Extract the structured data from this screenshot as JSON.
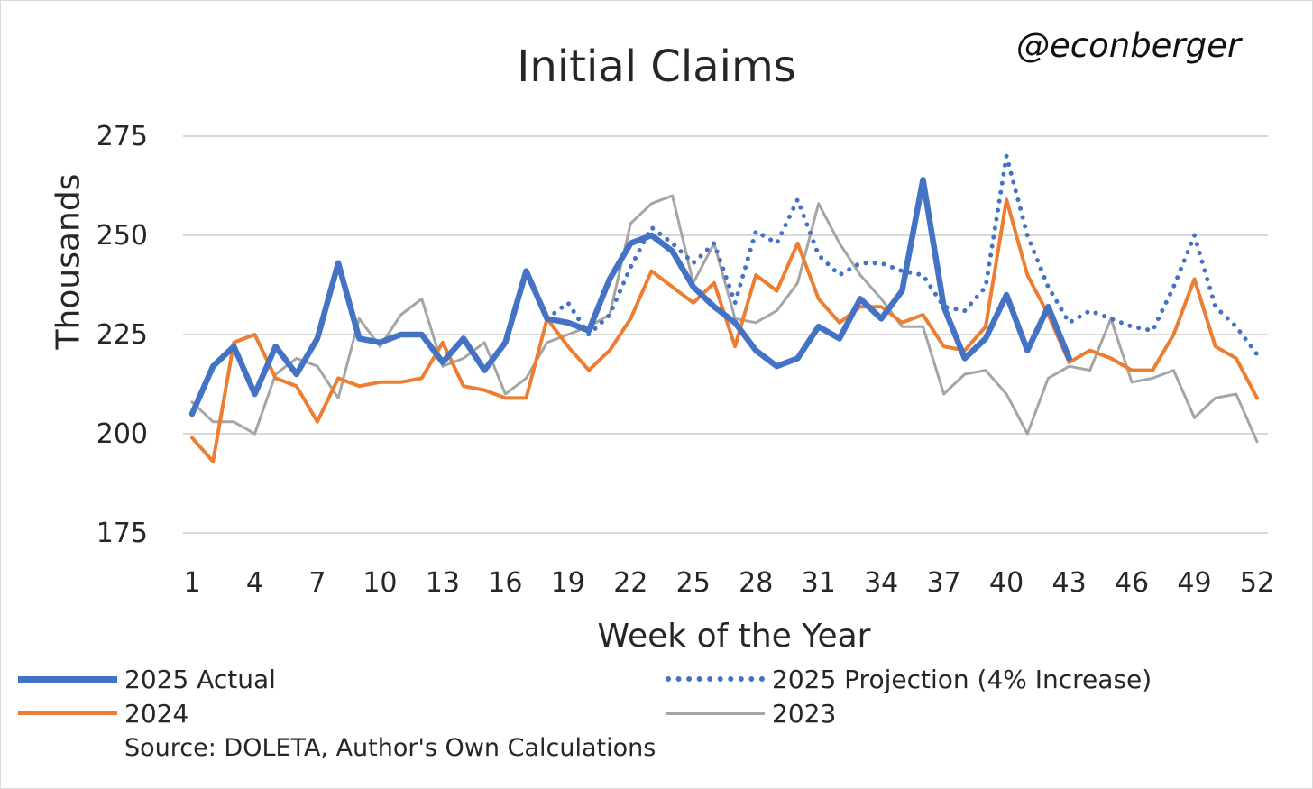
{
  "chart_data": {
    "type": "line",
    "title": "Initial Claims",
    "watermark": "@econberger",
    "ylabel": "Thousands",
    "xlabel": "Week of the Year",
    "ylim": [
      175,
      275
    ],
    "yticks": [
      175,
      200,
      225,
      250,
      275
    ],
    "xlim": [
      1,
      52
    ],
    "xticks": [
      1,
      4,
      7,
      10,
      13,
      16,
      19,
      22,
      25,
      28,
      31,
      34,
      37,
      40,
      43,
      46,
      49,
      52
    ],
    "grid": true,
    "legend_position": "bottom",
    "source": "Source: DOLETA, Author's Own Calculations",
    "series": [
      {
        "name": "2025 Actual",
        "color": "#4472C4",
        "style": "solid-thick",
        "x": [
          1,
          2,
          3,
          4,
          5,
          6,
          7,
          8,
          9,
          10,
          11,
          12,
          13,
          14,
          15,
          16,
          17,
          18,
          19,
          20,
          21,
          22,
          23,
          24,
          25,
          26,
          27,
          28,
          29,
          30,
          31,
          32,
          33,
          34,
          35,
          36,
          37,
          38,
          39,
          40,
          41,
          42,
          43
        ],
        "values": [
          205,
          217,
          222,
          210,
          222,
          215,
          224,
          243,
          224,
          223,
          225,
          225,
          218,
          224,
          216,
          223,
          241,
          229,
          228,
          226,
          239,
          248,
          250,
          246,
          237,
          232,
          228,
          221,
          217,
          219,
          227,
          224,
          234,
          229,
          236,
          264,
          232,
          219,
          224,
          235,
          221,
          232,
          219
        ]
      },
      {
        "name": "2025 Projection (4% Increase)",
        "color": "#4472C4",
        "style": "dotted",
        "x": [
          18,
          19,
          20,
          21,
          22,
          23,
          24,
          25,
          26,
          27,
          28,
          29,
          30,
          31,
          32,
          33,
          34,
          35,
          36,
          37,
          38,
          39,
          40,
          41,
          42,
          43,
          44,
          45,
          46,
          47,
          48,
          49,
          50,
          51,
          52
        ],
        "values": [
          229,
          233,
          225,
          230,
          242,
          252,
          248,
          243,
          248,
          233,
          251,
          248,
          259,
          245,
          240,
          243,
          243,
          241,
          240,
          232,
          231,
          237,
          270,
          250,
          237,
          228,
          231,
          229,
          227,
          226,
          237,
          250,
          232,
          227,
          220
        ]
      },
      {
        "name": "2024",
        "color": "#ED7D31",
        "style": "solid",
        "x": [
          1,
          2,
          3,
          4,
          5,
          6,
          7,
          8,
          9,
          10,
          11,
          12,
          13,
          14,
          15,
          16,
          17,
          18,
          19,
          20,
          21,
          22,
          23,
          24,
          25,
          26,
          27,
          28,
          29,
          30,
          31,
          32,
          33,
          34,
          35,
          36,
          37,
          38,
          39,
          40,
          41,
          42,
          43,
          44,
          45,
          46,
          47,
          48,
          49,
          50,
          51,
          52
        ],
        "values": [
          199,
          193,
          223,
          225,
          214,
          212,
          203,
          214,
          212,
          213,
          213,
          214,
          223,
          212,
          211,
          209,
          209,
          229,
          222,
          216,
          221,
          229,
          241,
          237,
          233,
          238,
          222,
          240,
          236,
          248,
          234,
          228,
          232,
          232,
          228,
          230,
          222,
          221,
          227,
          259,
          240,
          230,
          218,
          221,
          219,
          216,
          216,
          225,
          239,
          222,
          219,
          209
        ]
      },
      {
        "name": "2023",
        "color": "#A5A5A5",
        "style": "solid",
        "x": [
          1,
          2,
          3,
          4,
          5,
          6,
          7,
          8,
          9,
          10,
          11,
          12,
          13,
          14,
          15,
          16,
          17,
          18,
          19,
          20,
          21,
          22,
          23,
          24,
          25,
          26,
          27,
          28,
          29,
          30,
          31,
          32,
          33,
          34,
          35,
          36,
          37,
          38,
          39,
          40,
          41,
          42,
          43,
          44,
          45,
          46,
          47,
          48,
          49,
          50,
          51,
          52
        ],
        "values": [
          208,
          203,
          203,
          200,
          215,
          219,
          217,
          209,
          229,
          222,
          230,
          234,
          217,
          219,
          223,
          210,
          214,
          223,
          225,
          227,
          230,
          253,
          258,
          260,
          238,
          248,
          229,
          228,
          231,
          238,
          258,
          248,
          240,
          234,
          227,
          227,
          210,
          215,
          216,
          210,
          200,
          214,
          217,
          216,
          229,
          213,
          214,
          216,
          204,
          209,
          210,
          198
        ]
      }
    ]
  }
}
